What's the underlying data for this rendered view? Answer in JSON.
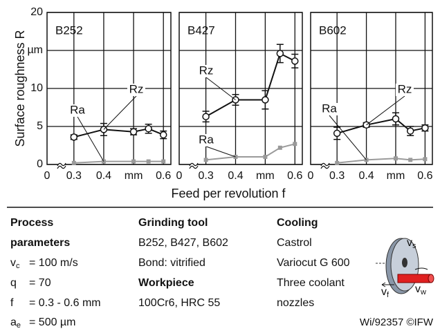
{
  "chart_data": [
    {
      "type": "line",
      "title": "B252",
      "x": [
        0.3,
        0.4,
        0.5,
        0.55,
        0.6
      ],
      "x_origin_label": "0",
      "xlim": [
        0.21,
        0.625
      ],
      "xticks": [
        0.3,
        0.4,
        {
          "value": 0.5,
          "label": "mm"
        },
        0.6
      ],
      "ylim": [
        0,
        20
      ],
      "yticks": [
        0,
        5,
        10,
        {
          "value": 15,
          "label": "µm"
        },
        20
      ],
      "grid": true,
      "series": [
        {
          "name": "Rz",
          "color": "#111111",
          "values": [
            3.6,
            4.6,
            4.3,
            4.7,
            3.9
          ],
          "errors": [
            0.3,
            0.8,
            0.4,
            0.6,
            0.5
          ]
        },
        {
          "name": "Ra",
          "color": "#9a9a9a",
          "values": [
            0.2,
            0.4,
            0.4,
            0.4,
            0.4
          ]
        }
      ]
    },
    {
      "type": "line",
      "title": "B427",
      "x": [
        0.3,
        0.4,
        0.5,
        0.55,
        0.6
      ],
      "x_origin_label": "0",
      "xlim": [
        0.21,
        0.625
      ],
      "xticks": [
        0.3,
        0.4,
        {
          "value": 0.5,
          "label": "mm"
        },
        0.6
      ],
      "ylim": [
        0,
        20
      ],
      "yticks": [
        0,
        5,
        10,
        {
          "value": 15,
          "label": "µm"
        },
        20
      ],
      "grid": true,
      "series": [
        {
          "name": "Rz",
          "color": "#111111",
          "values": [
            6.3,
            8.5,
            8.5,
            14.6,
            13.6
          ],
          "errors": [
            0.7,
            0.7,
            1.2,
            1.2,
            0.9
          ]
        },
        {
          "name": "Ra",
          "color": "#9a9a9a",
          "values": [
            0.6,
            1.0,
            1.0,
            2.2,
            2.7
          ]
        }
      ]
    },
    {
      "type": "line",
      "title": "B602",
      "x": [
        0.3,
        0.4,
        0.5,
        0.55,
        0.6
      ],
      "x_origin_label": "0",
      "xlim": [
        0.21,
        0.625
      ],
      "xticks": [
        0.3,
        0.4,
        {
          "value": 0.5,
          "label": "mm"
        },
        0.6
      ],
      "ylim": [
        0,
        20
      ],
      "yticks": [
        0,
        5,
        10,
        {
          "value": 15,
          "label": "µm"
        },
        20
      ],
      "grid": true,
      "series": [
        {
          "name": "Rz",
          "color": "#111111",
          "values": [
            4.1,
            5.2,
            6.0,
            4.4,
            4.8
          ],
          "errors": [
            0.8,
            0.3,
            0.8,
            0.6,
            0.4
          ]
        },
        {
          "name": "Ra",
          "color": "#9a9a9a",
          "values": [
            0.2,
            0.6,
            0.8,
            0.6,
            0.7
          ]
        }
      ]
    }
  ],
  "y_label": "Surface roughness R",
  "x_label": "Feed per revolution f",
  "process_parameters": {
    "title": [
      "Process",
      "parameters"
    ],
    "items": [
      {
        "symbol": "v",
        "sub": "c",
        "text": "= 100 m/s"
      },
      {
        "symbol": "q",
        "text": "= 70"
      },
      {
        "symbol": "f",
        "text": "= 0.3 - 0.6 mm"
      },
      {
        "symbol": "a",
        "sub": "e",
        "text": "= 500 µm"
      }
    ]
  },
  "grinding_tool": {
    "title": "Grinding tool",
    "lines": [
      "B252, B427, B602",
      "Bond: vitrified"
    ]
  },
  "workpiece": {
    "title": "Workpiece",
    "lines": [
      "100Cr6, HRC 55"
    ]
  },
  "cooling": {
    "title": "Cooling",
    "lines": [
      "Castrol",
      "Variocut G 600",
      "Three coolant",
      "nozzles"
    ]
  },
  "figure_labels": {
    "vs": {
      "symbol": "v",
      "sub": "s"
    },
    "vf": {
      "symbol": "v",
      "sub": "f"
    },
    "vw": {
      "symbol": "v",
      "sub": "w"
    }
  },
  "credit": "Wi/92357 ©IFW"
}
